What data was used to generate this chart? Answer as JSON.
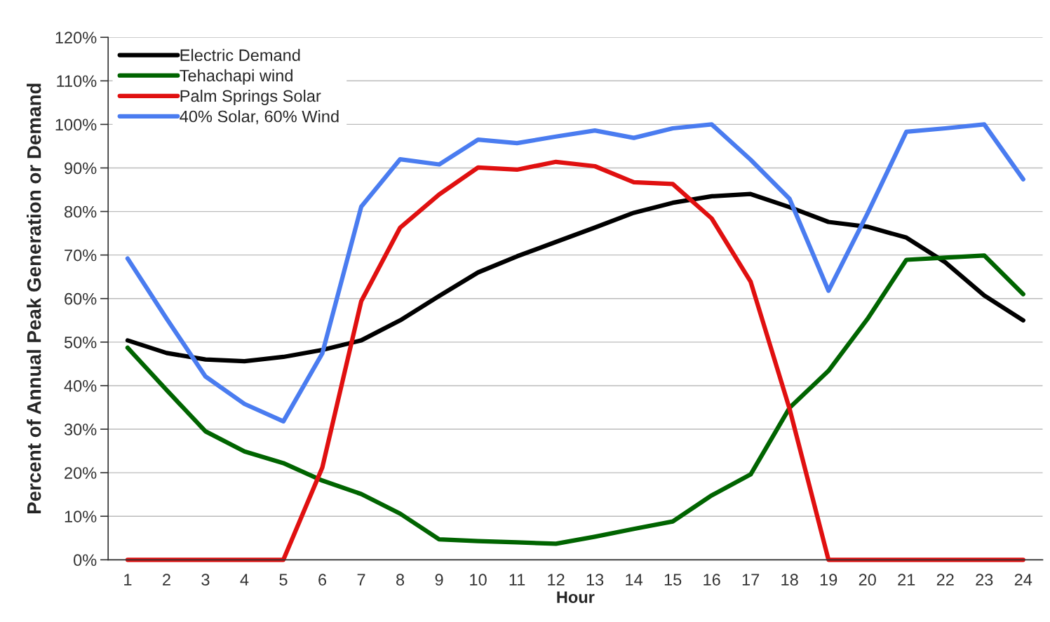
{
  "chart_data": {
    "type": "line",
    "xlabel": "Hour",
    "ylabel": "Percent of Annual Peak Generation or Demand",
    "categories": [
      "1",
      "2",
      "3",
      "4",
      "5",
      "6",
      "7",
      "8",
      "9",
      "10",
      "11",
      "12",
      "13",
      "14",
      "15",
      "16",
      "17",
      "18",
      "19",
      "20",
      "21",
      "22",
      "23",
      "24"
    ],
    "series": [
      {
        "name": "Electric Demand",
        "color": "#000000",
        "values": [
          50.4,
          47.5,
          46,
          45.6,
          46.6,
          48.2,
          50.4,
          55,
          60.6,
          66,
          69.7,
          73,
          76.3,
          79.7,
          82,
          83.5,
          84,
          81,
          77.6,
          76.5,
          74,
          68.3,
          60.7,
          55
        ]
      },
      {
        "name": "Tehachapi wind",
        "color": "#006400",
        "values": [
          48.7,
          39,
          29.5,
          24.9,
          22.2,
          18.2,
          15.1,
          10.6,
          4.7,
          4.3,
          4,
          3.7,
          5.3,
          7.1,
          8.8,
          14.8,
          19.6,
          34.9,
          43.4,
          55.3,
          68.9,
          69.4,
          69.9,
          61
        ]
      },
      {
        "name": "Palm Springs Solar",
        "color": "#e01010",
        "values": [
          0,
          0,
          0,
          0,
          0,
          21.2,
          59.4,
          76.3,
          83.9,
          90.1,
          89.6,
          91.4,
          90.4,
          86.7,
          86.3,
          78.4,
          63.9,
          34.7,
          0,
          0,
          0,
          0,
          0,
          0
        ]
      },
      {
        "name": "40% Solar, 60% Wind",
        "color": "#4a7cf0",
        "values": [
          69.2,
          55.4,
          42.1,
          35.8,
          31.8,
          47.4,
          81.1,
          92,
          90.8,
          96.5,
          95.7,
          97.2,
          98.6,
          96.9,
          99.1,
          100,
          91.9,
          82.9,
          61.8,
          79.5,
          98.3,
          99.1,
          100,
          87.4
        ]
      }
    ],
    "ylim": [
      0,
      120
    ],
    "yticks": [
      {
        "value": 0,
        "label": "0%"
      },
      {
        "value": 10,
        "label": "10%"
      },
      {
        "value": 20,
        "label": "20%"
      },
      {
        "value": 30,
        "label": "30%"
      },
      {
        "value": 40,
        "label": "40%"
      },
      {
        "value": 50,
        "label": "50%"
      },
      {
        "value": 60,
        "label": "60%"
      },
      {
        "value": 70,
        "label": "70%"
      },
      {
        "value": 80,
        "label": "80%"
      },
      {
        "value": 90,
        "label": "90%"
      },
      {
        "value": 100,
        "label": "100%"
      },
      {
        "value": 110,
        "label": "110%"
      },
      {
        "value": 120,
        "label": "120%"
      }
    ],
    "grid": "y",
    "legend": "top left",
    "marker": "none",
    "line_style": "solid"
  }
}
